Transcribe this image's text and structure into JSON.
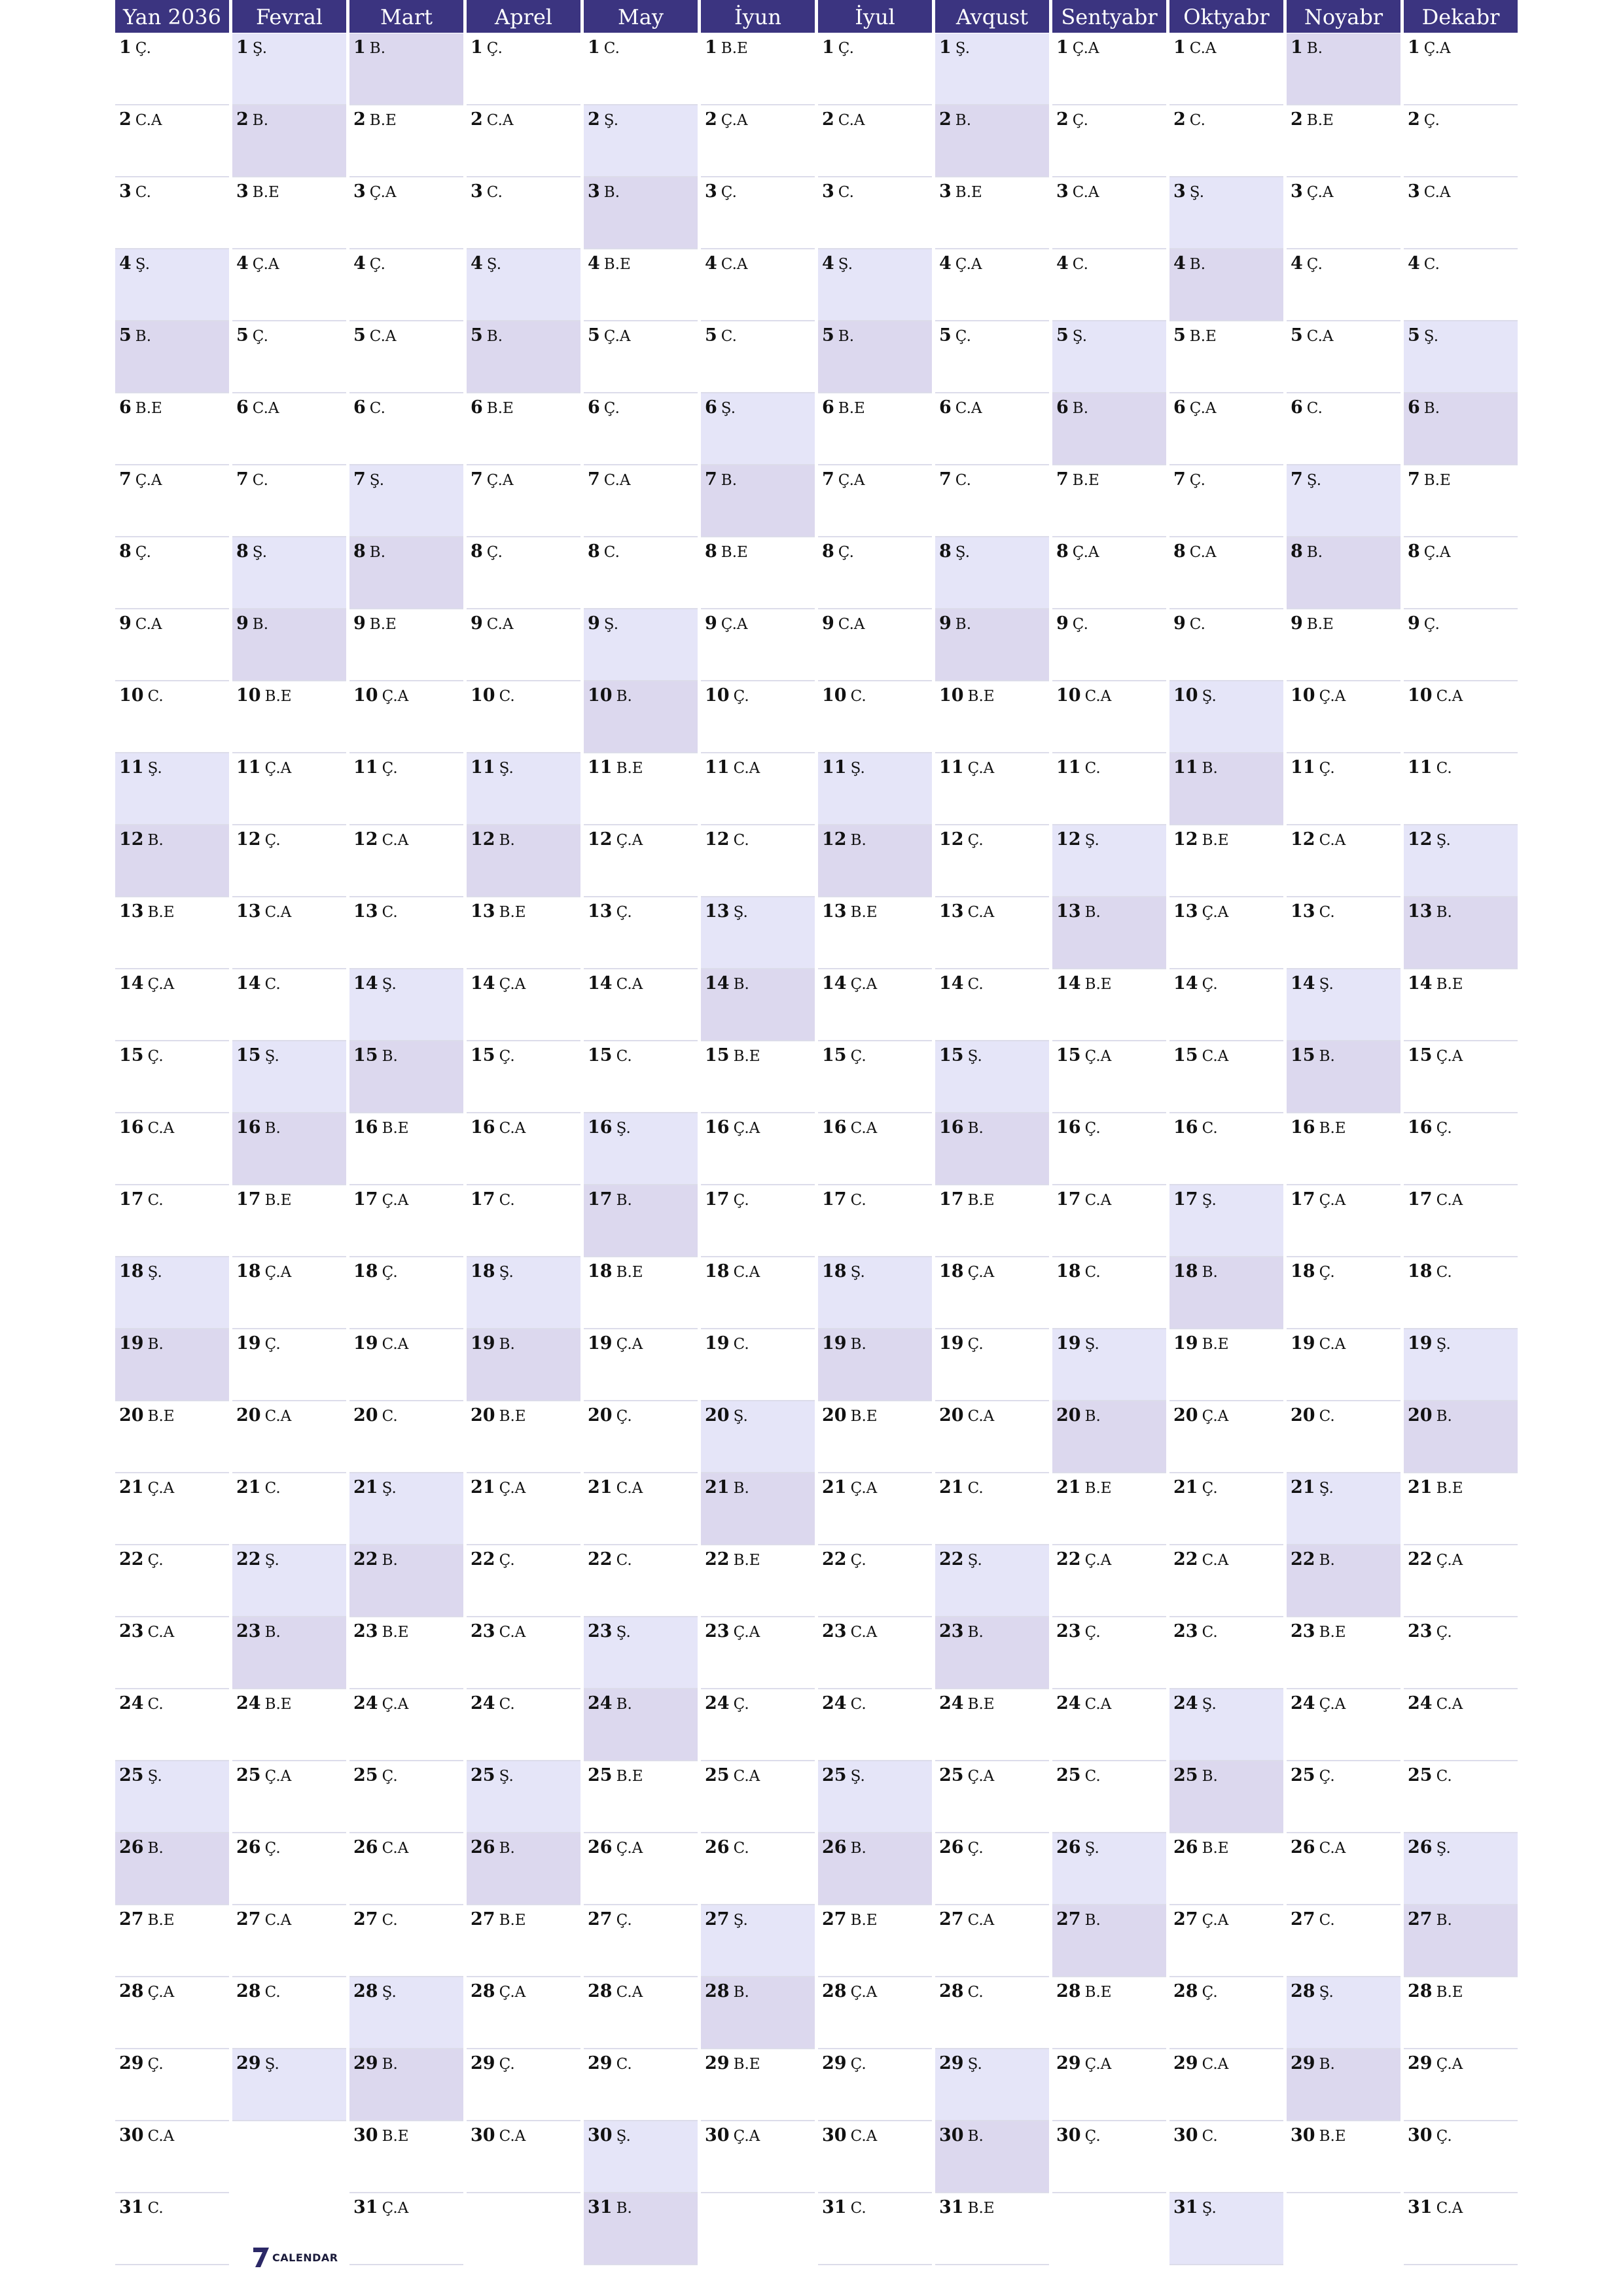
{
  "calendar": {
    "year": 2036,
    "months": [
      "Yan 2036",
      "Fevral",
      "Mart",
      "Aprel",
      "May",
      "İyun",
      "İyul",
      "Avqust",
      "Sentyabr",
      "Oktyabr",
      "Noyabr",
      "Dekabr"
    ],
    "month_lengths": [
      31,
      29,
      31,
      30,
      31,
      30,
      31,
      31,
      30,
      31,
      30,
      31
    ],
    "first_weekday_index": [
      2,
      5,
      6,
      2,
      4,
      0,
      2,
      5,
      1,
      3,
      6,
      1
    ],
    "weekday_abbr": [
      "B.E",
      "Ç.A",
      "Ç.",
      "C.A",
      "C.",
      "Ş.",
      "B."
    ],
    "weekend_colors": {
      "saturday": "#e5e5f8",
      "sunday": "#dcd8ee"
    },
    "header_color": "#3b3480"
  },
  "logo": {
    "text": "CALENDAR",
    "mark": "7"
  }
}
